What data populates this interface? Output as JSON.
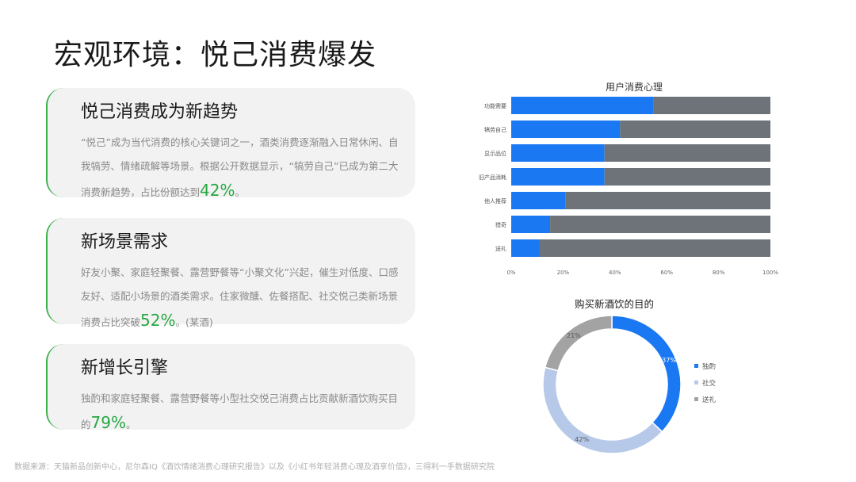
{
  "page": {
    "title": "宏观环境：悦己消费爆发"
  },
  "cards": [
    {
      "title": "悦己消费成为新趋势",
      "text": "“悦己”成为当代消费的核心关键词之一，酒类消费逐渐融入日常休闲、自我犒劳、情绪疏解等场景。根据公开数据显示，“犒劳自己”已成为第二大消费新趋势，占比份额达到",
      "highlight": "42%",
      "suffix": "。"
    },
    {
      "title": "新场景需求",
      "text": "好友小聚、家庭轻聚餐、露营野餐等“小聚文化”兴起，催生对低度、口感友好、适配小场景的酒类需求。住家微醺、佐餐搭配、社交悦己类新场景消费占比突破",
      "highlight": "52%",
      "suffix": "。(某酒)"
    },
    {
      "title": "新增长引擎",
      "text": "独酌和家庭轻聚餐、露营野餐等小型社交悦己消费占比贡献新酒饮购买目的",
      "highlight": "79%",
      "suffix": "。"
    }
  ],
  "footer": {
    "source": "数据来源：天猫新品创新中心，尼尔森IQ《酒饮情绪消费心理研究报告》以及《小红书年轻消费心理及酒享价值》，三得利一手数据研究院"
  },
  "chart_data": [
    {
      "type": "bar",
      "title": "用户消费心理",
      "categories": [
        "功能需要",
        "犒劳自己",
        "显示品位",
        "旧产品消耗",
        "他人推荐",
        "猎奇",
        "送礼"
      ],
      "series": [
        {
          "values": [
            55,
            42,
            36,
            36,
            21,
            15,
            11
          ],
          "color": "#1a78f2"
        },
        {
          "values": [
            45,
            58,
            64,
            64,
            79,
            85,
            89
          ],
          "color": "#6d7378"
        }
      ],
      "xlim": [
        0,
        100
      ],
      "ticks": [
        "0%",
        "20%",
        "40%",
        "60%",
        "80%",
        "100%"
      ],
      "stacked": true,
      "grid": false
    },
    {
      "type": "pie",
      "donut": true,
      "title": "购买新酒饮的目的",
      "labels": [
        "独酌",
        "社交",
        "送礼"
      ],
      "values": [
        37,
        42,
        21
      ],
      "display_labels": [
        "37%",
        "42%",
        "21%"
      ],
      "colors": [
        "#1a78f2",
        "#b7c9e8",
        "#a3a3a3"
      ],
      "legend": "right"
    }
  ]
}
